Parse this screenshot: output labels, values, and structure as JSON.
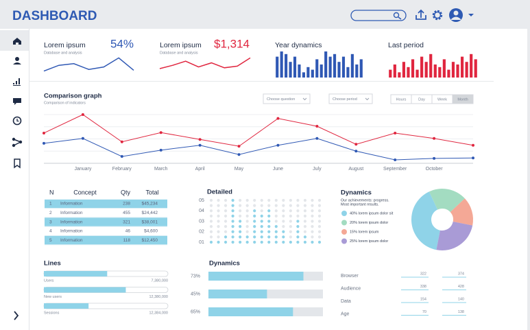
{
  "header": {
    "title": "DASHBOARD"
  },
  "cards": [
    {
      "title": "Lorem ipsum",
      "subtitle": "Database and analysis",
      "kpi": "54%"
    },
    {
      "title": "Lorem ipsum",
      "subtitle": "Database and analysis",
      "kpi": "$1,314"
    },
    {
      "title": "Year dynamics"
    },
    {
      "title": "Last period"
    }
  ],
  "comparison_controls": {
    "question": "Choose question",
    "period": "Choose period",
    "ranges": [
      "Hours",
      "Day",
      "Week",
      "Month"
    ],
    "active_range": 3
  },
  "table": {
    "columns": [
      "N",
      "Concept",
      "Qty",
      "Total"
    ],
    "rows": [
      [
        "1",
        "Information",
        "238",
        "$45,234"
      ],
      [
        "2",
        "Information",
        "455",
        "$24,442"
      ],
      [
        "3",
        "Information",
        "321",
        "$38,001"
      ],
      [
        "4",
        "Information",
        "46",
        "$4,600"
      ],
      [
        "5",
        "Information",
        "118",
        "$12,450"
      ]
    ]
  },
  "stats": {
    "rows": [
      {
        "label": "Browser",
        "values": [
          "322",
          "374"
        ]
      },
      {
        "label": "Audience",
        "values": [
          "338",
          "428"
        ]
      },
      {
        "label": "Data",
        "values": [
          "154",
          "140"
        ]
      },
      {
        "label": "Age",
        "values": [
          "70",
          "138"
        ]
      }
    ]
  },
  "chart_data": [
    {
      "type": "sparkline",
      "color": "#2f58b4",
      "values": [
        2,
        9,
        11,
        4,
        7,
        18,
        3
      ],
      "ylim": [
        0,
        20
      ]
    },
    {
      "type": "sparkline",
      "color": "#e0263f",
      "values": [
        5,
        9,
        14,
        7,
        12,
        6,
        8,
        18
      ],
      "ylim": [
        0,
        20
      ]
    },
    {
      "type": "bar",
      "color": "#2f58b4",
      "values": [
        8,
        10,
        9,
        6,
        8,
        5,
        2,
        4,
        3,
        7,
        5,
        10,
        8,
        9,
        6,
        8,
        4,
        9,
        5,
        7
      ],
      "ylim": [
        0,
        10
      ]
    },
    {
      "type": "bar",
      "color": "#e0263f",
      "values": [
        3,
        5,
        2,
        6,
        4,
        7,
        3,
        8,
        6,
        9,
        5,
        4,
        7,
        3,
        6,
        5,
        8,
        6,
        9,
        7
      ],
      "ylim": [
        0,
        10
      ]
    },
    {
      "type": "line",
      "title": "Comparison graph",
      "subtitle": "Comparison of indicators",
      "categories": [
        null,
        "January",
        "February",
        "March",
        "April",
        "May",
        "June",
        "July",
        "August",
        "September",
        "October",
        null
      ],
      "series": [
        {
          "color": "#e0263f",
          "values": [
            62,
            100,
            44,
            63,
            49,
            35,
            92,
            76,
            39,
            62,
            51,
            37
          ]
        },
        {
          "color": "#2f58b4",
          "values": [
            41,
            51,
            14,
            27,
            37,
            18,
            37,
            51,
            25,
            7,
            10,
            11
          ]
        }
      ],
      "ylim": [
        0,
        100
      ],
      "yticks": [
        0,
        25,
        50,
        75,
        100
      ],
      "grid": true
    },
    {
      "type": "dot-matrix",
      "title": "Detailed",
      "color": "#8fd3e8",
      "empty_color": "#e3e6ea",
      "values": [
        1,
        1,
        1.5,
        5,
        3,
        1.5,
        4,
        3.5,
        4,
        2.5,
        2,
        1,
        3,
        1.5,
        1,
        1
      ],
      "ylim": [
        1,
        5
      ],
      "yticks": [
        {
          "value": 5,
          "label": "05"
        },
        {
          "value": 4,
          "label": "04"
        },
        {
          "value": 3,
          "label": "03"
        },
        {
          "value": 2,
          "label": "02"
        },
        {
          "value": 1,
          "label": "01"
        }
      ]
    },
    {
      "type": "donut",
      "title": "Dynamics",
      "subtitle": [
        "Our achievements: progress.",
        "Most important results."
      ],
      "labels": [
        "40% lorem ipsum dolor sit",
        "20% lorem ipsum dolor",
        "15% lorem ipsum",
        "25% lorem ipsum dolor"
      ],
      "values": [
        40,
        20,
        15,
        25
      ],
      "colors": [
        "#8fd3e8",
        "#a3dcc1",
        "#f4a896",
        "#a99bd6"
      ]
    },
    {
      "type": "progress",
      "title": "Lines",
      "color": "#8fd3e8",
      "categories": [
        "Users",
        "New users",
        "Sessions"
      ],
      "values": [
        51,
        66,
        36
      ],
      "xlim": [
        0,
        100
      ],
      "totals": [
        "7,380,000",
        "12,380,000",
        "12,384,000"
      ]
    },
    {
      "type": "hbar",
      "title": "Dynamics",
      "color": "#8fd3e8",
      "values": [
        73,
        45,
        65
      ],
      "value_labels": [
        "73%",
        "45%",
        "65%"
      ],
      "xlim": [
        0,
        88
      ]
    }
  ]
}
